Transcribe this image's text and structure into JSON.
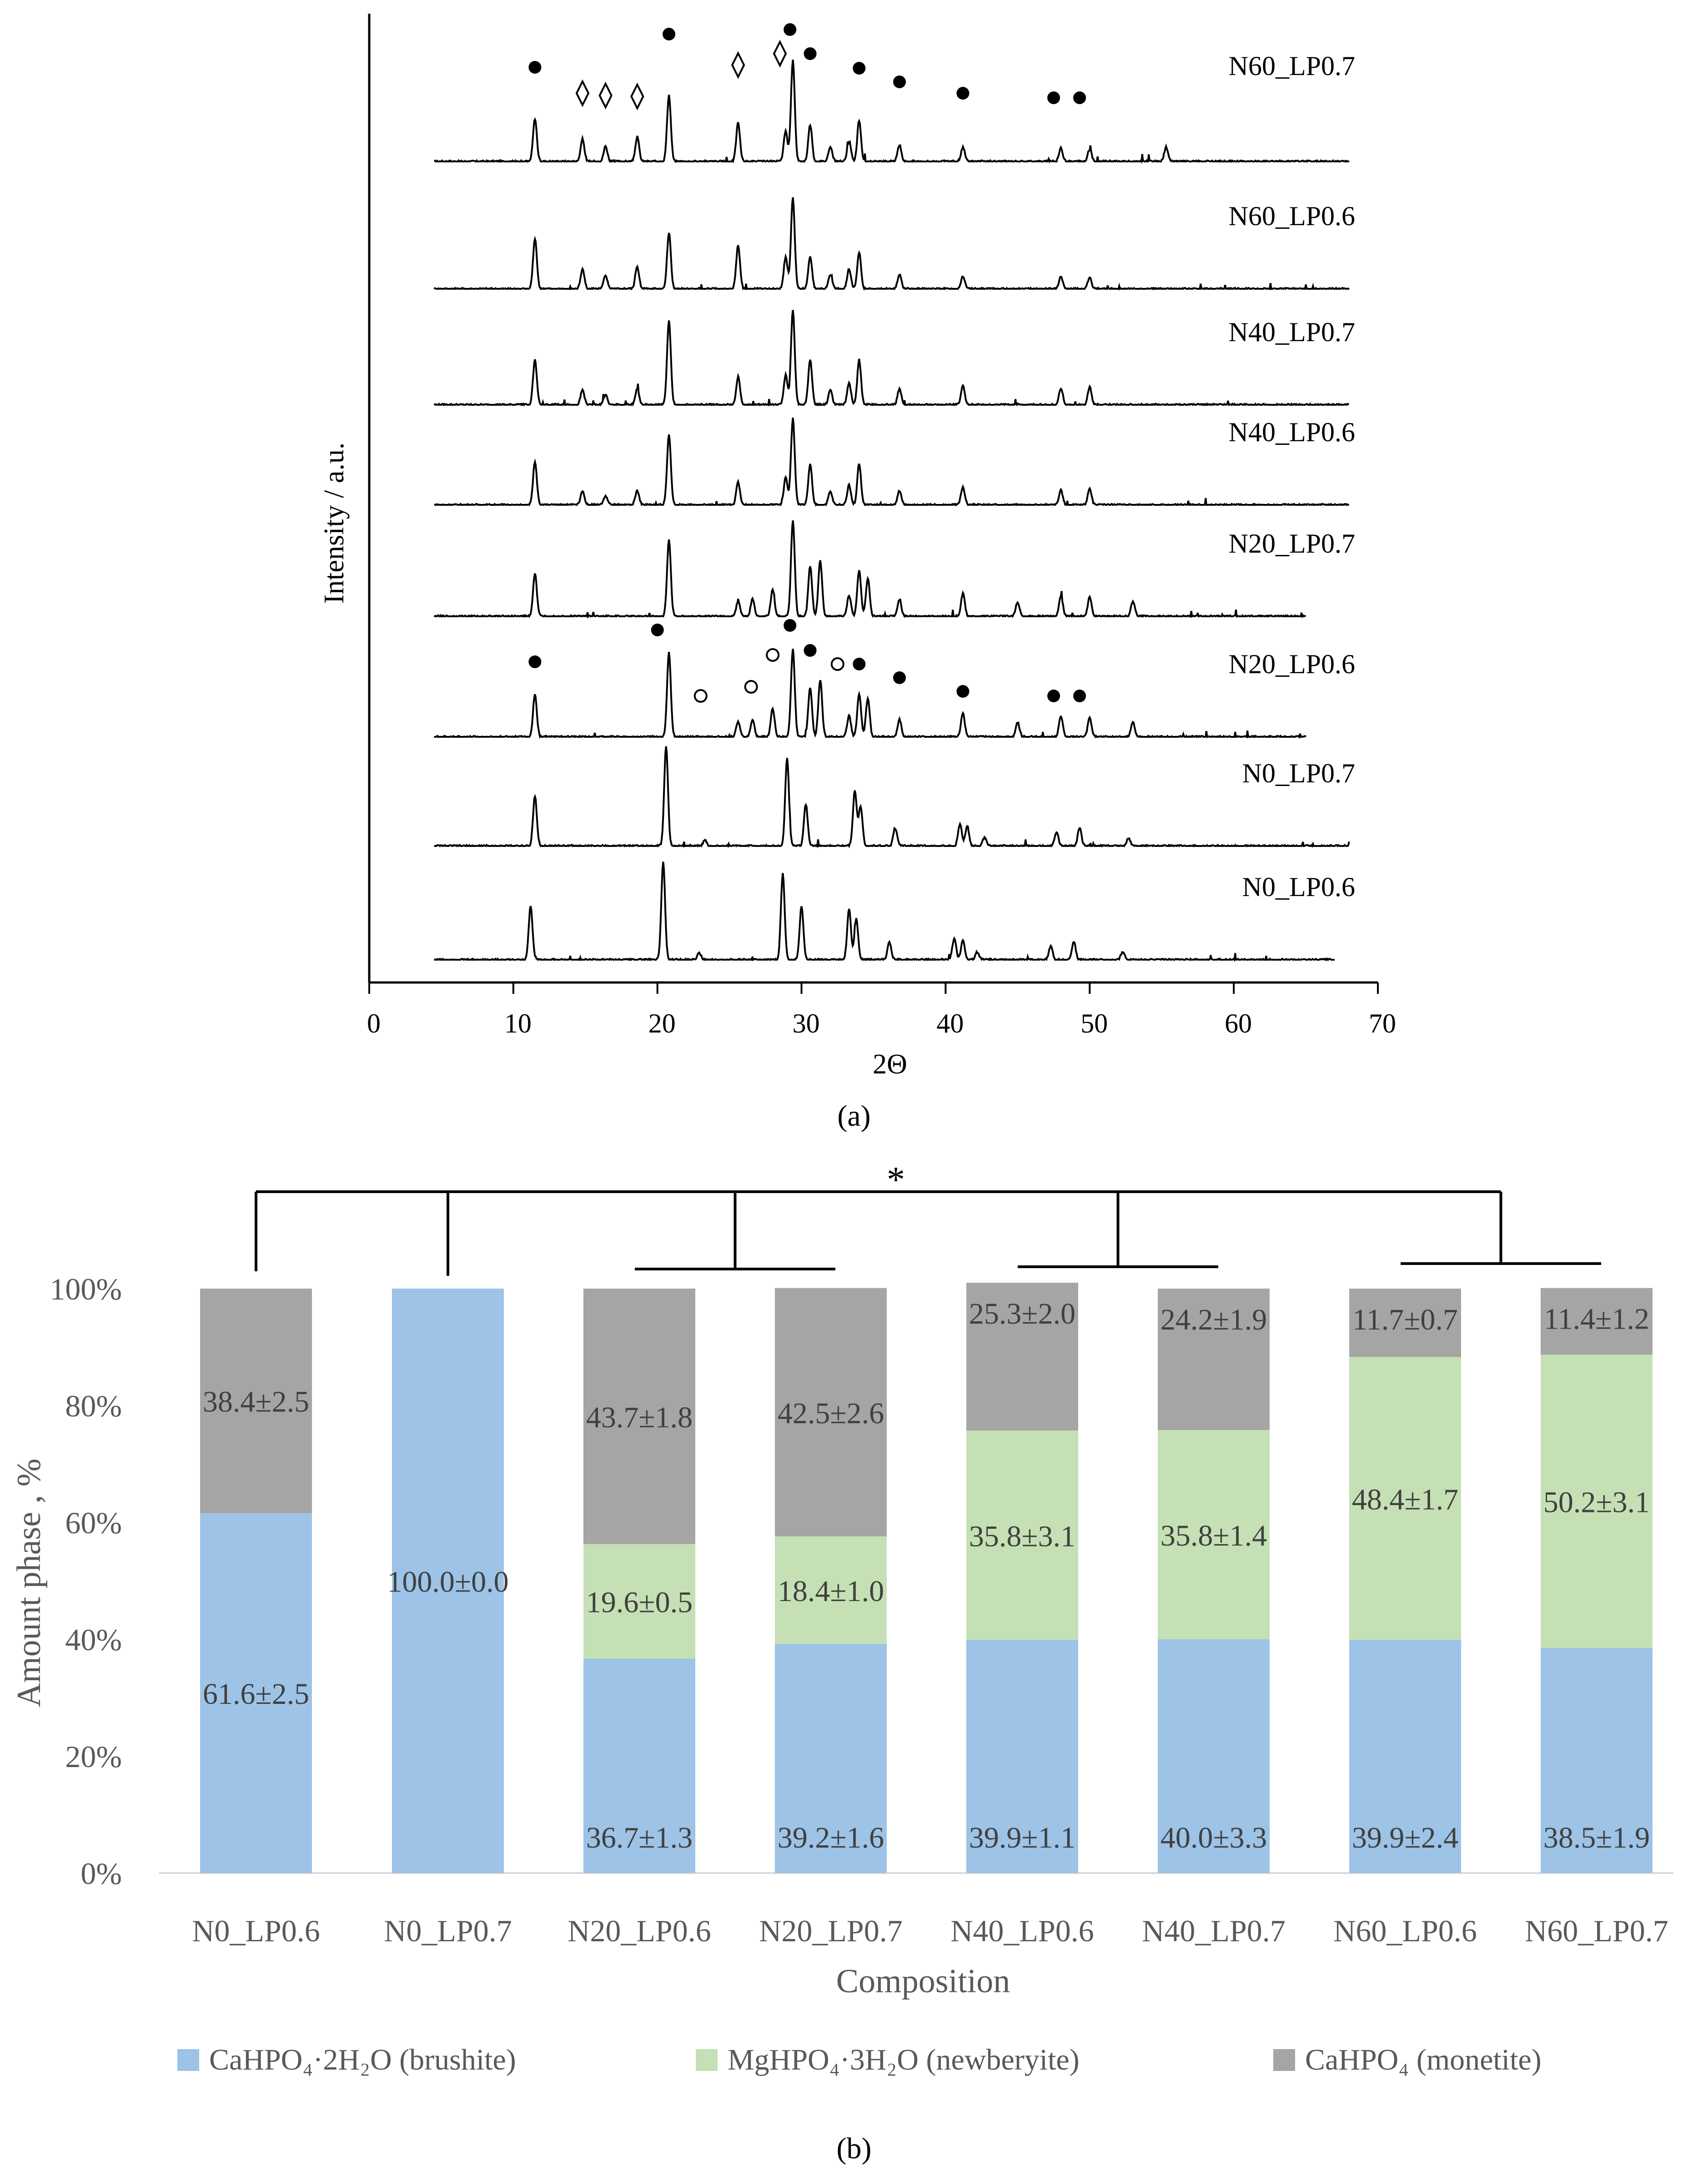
{
  "chart_data": [
    {
      "type": "line",
      "panel_label": "(a)",
      "title": "",
      "xlabel": "2Θ",
      "ylabel": "Intensity / a.u.",
      "xlim": [
        0,
        70
      ],
      "xticks": [
        "0",
        "10",
        "20",
        "30",
        "40",
        "50",
        "60",
        "70"
      ],
      "grid": false,
      "series": [
        {
          "name": "N60_LP0.7",
          "x": [
            4.5,
            11.5,
            14.8,
            16.4,
            18.6,
            20.8,
            25.6,
            28.9,
            29.4,
            30.6,
            32.0,
            33.3,
            34.0,
            36.8,
            41.2,
            48.0,
            50.0,
            55.3,
            68.0
          ],
          "intensity": [
            0,
            0.42,
            0.22,
            0.15,
            0.24,
            0.65,
            0.38,
            0.3,
            1.0,
            0.36,
            0.15,
            0.2,
            0.4,
            0.16,
            0.14,
            0.13,
            0.12,
            0.14,
            0
          ]
        },
        {
          "name": "N60_LP0.6",
          "x": [
            4.5,
            11.5,
            14.8,
            16.4,
            18.6,
            20.8,
            25.6,
            28.9,
            29.4,
            30.6,
            32.0,
            33.3,
            34.0,
            36.8,
            41.2,
            48.0,
            50.0,
            68.0
          ],
          "intensity": [
            0,
            0.55,
            0.22,
            0.15,
            0.24,
            0.62,
            0.48,
            0.35,
            1.0,
            0.36,
            0.15,
            0.22,
            0.4,
            0.16,
            0.14,
            0.13,
            0.12,
            0
          ]
        },
        {
          "name": "N40_LP0.7",
          "x": [
            4.5,
            11.5,
            14.8,
            16.4,
            18.6,
            20.8,
            25.6,
            28.9,
            29.4,
            30.6,
            32.0,
            33.3,
            34.0,
            36.8,
            41.2,
            48.0,
            50.0,
            68.0
          ],
          "intensity": [
            0,
            0.45,
            0.15,
            0.1,
            0.16,
            0.85,
            0.28,
            0.3,
            0.95,
            0.45,
            0.15,
            0.22,
            0.45,
            0.16,
            0.2,
            0.16,
            0.18,
            0
          ]
        },
        {
          "name": "N40_LP0.6",
          "x": [
            4.5,
            11.5,
            14.8,
            16.4,
            18.6,
            20.8,
            25.6,
            28.9,
            29.4,
            30.6,
            32.0,
            33.3,
            34.0,
            36.8,
            41.2,
            48.0,
            50.0,
            68.0
          ],
          "intensity": [
            0,
            0.48,
            0.15,
            0.1,
            0.16,
            0.78,
            0.25,
            0.3,
            0.95,
            0.45,
            0.15,
            0.22,
            0.45,
            0.16,
            0.2,
            0.16,
            0.18,
            0
          ]
        },
        {
          "name": "N20_LP0.7",
          "x": [
            4.5,
            11.5,
            20.8,
            25.6,
            26.6,
            28.0,
            29.4,
            30.6,
            31.3,
            33.3,
            34.0,
            34.6,
            36.8,
            41.2,
            45.0,
            48.0,
            50.0,
            53.0,
            68.0
          ],
          "intensity": [
            0,
            0.45,
            0.8,
            0.16,
            0.18,
            0.28,
            1.0,
            0.52,
            0.58,
            0.22,
            0.48,
            0.4,
            0.18,
            0.24,
            0.15,
            0.22,
            0.2,
            0.16,
            0
          ]
        },
        {
          "name": "N20_LP0.6",
          "x": [
            4.5,
            11.5,
            20.8,
            25.6,
            26.6,
            28.0,
            29.4,
            30.6,
            31.3,
            33.3,
            34.0,
            34.6,
            36.8,
            41.2,
            45.0,
            48.0,
            50.0,
            53.0,
            68.0
          ],
          "intensity": [
            0,
            0.45,
            0.88,
            0.16,
            0.18,
            0.3,
            0.92,
            0.52,
            0.6,
            0.22,
            0.45,
            0.4,
            0.18,
            0.25,
            0.15,
            0.22,
            0.2,
            0.16,
            0
          ]
        },
        {
          "name": "N0_LP0.7",
          "x": [
            4.5,
            11.5,
            20.6,
            23.3,
            29.0,
            30.3,
            33.7,
            34.1,
            36.5,
            41.0,
            41.5,
            42.7,
            47.7,
            49.3,
            52.7,
            68.0
          ],
          "intensity": [
            0,
            0.5,
            1.0,
            0.06,
            0.88,
            0.42,
            0.55,
            0.4,
            0.18,
            0.22,
            0.2,
            0.08,
            0.14,
            0.18,
            0.08,
            0
          ]
        },
        {
          "name": "N0_LP0.6",
          "x": [
            4.5,
            11.2,
            20.4,
            22.9,
            28.7,
            30.0,
            33.3,
            33.8,
            36.1,
            40.6,
            41.2,
            42.2,
            47.3,
            48.9,
            52.3,
            68.0
          ],
          "intensity": [
            0,
            0.55,
            1.0,
            0.07,
            0.88,
            0.55,
            0.52,
            0.42,
            0.18,
            0.22,
            0.2,
            0.08,
            0.14,
            0.18,
            0.08,
            0
          ]
        }
      ],
      "annotations": {
        "legend_placement": "right of each trace",
        "markers": [
          {
            "pattern": "N60_LP0.7",
            "symbol": "filled-circle",
            "x": [
              11.5,
              20.8,
              29.2,
              30.6,
              34.0,
              36.8,
              41.2,
              47.5,
              49.3
            ]
          },
          {
            "pattern": "N60_LP0.7",
            "symbol": "diamond",
            "x": [
              14.8,
              16.4,
              18.6,
              25.6,
              28.5
            ]
          },
          {
            "pattern": "N20_LP0.6",
            "symbol": "filled-circle",
            "x": [
              11.5,
              20.0,
              29.2,
              30.6,
              34.0,
              36.8,
              41.2,
              47.5,
              49.3
            ]
          },
          {
            "pattern": "N20_LP0.6",
            "symbol": "open-circle",
            "x": [
              23.0,
              26.5,
              28.0,
              32.5
            ]
          }
        ]
      }
    },
    {
      "type": "bar",
      "stacked": true,
      "panel_label": "(b)",
      "title": "",
      "xlabel": "Composition",
      "ylabel": "Amount phase , %",
      "ylim": [
        0,
        100
      ],
      "yticks": [
        "0%",
        "20%",
        "40%",
        "60%",
        "80%",
        "100%"
      ],
      "grid": false,
      "categories": [
        "N0_LP0.6",
        "N0_LP0.7",
        "N20_LP0.6",
        "N20_LP0.7",
        "N40_LP0.6",
        "N40_LP0.7",
        "N60_LP0.6",
        "N60_LP0.7"
      ],
      "series": [
        {
          "name": "CaHPO₄·2H₂O (brushite)",
          "color": "#9dc3e6",
          "values": [
            61.6,
            100.0,
            36.7,
            39.2,
            39.9,
            40.0,
            39.9,
            38.5
          ],
          "labels": [
            "61.6±2.5",
            "100.0±0.0",
            "36.7±1.3",
            "39.2±1.6",
            "39.9±1.1",
            "40.0±3.3",
            "39.9±2.4",
            "38.5±1.9"
          ]
        },
        {
          "name": "MgHPO₄·3H₂O (newberyite)",
          "color": "#c5e0b4",
          "values": [
            0,
            0,
            19.6,
            18.4,
            35.8,
            35.8,
            48.4,
            50.2
          ],
          "labels": [
            "",
            "",
            "19.6±0.5",
            "18.4±1.0",
            "35.8±3.1",
            "35.8±1.4",
            "48.4±1.7",
            "50.2±3.1"
          ]
        },
        {
          "name": "CaHPO₄ (monetite)",
          "color": "#a5a5a5",
          "values": [
            38.4,
            0,
            43.7,
            42.5,
            25.3,
            24.2,
            11.7,
            11.4
          ],
          "labels": [
            "38.4±2.5",
            "",
            "43.7±1.8",
            "42.5±2.6",
            "25.3±2.0",
            "24.2±1.9",
            "11.7±0.7",
            "11.4±1.2"
          ]
        }
      ],
      "legend_placement": "bottom",
      "significance_label": "*"
    }
  ]
}
